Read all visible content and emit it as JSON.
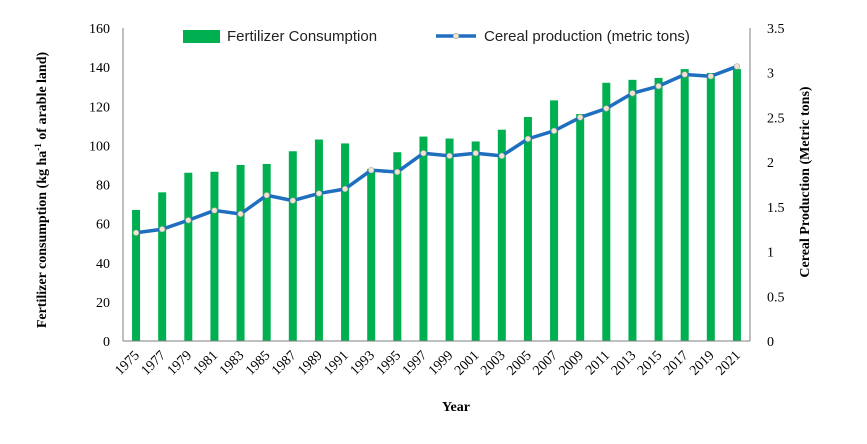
{
  "chart_data": {
    "type": "bar",
    "categories": [
      "1975",
      "1977",
      "1979",
      "1981",
      "1983",
      "1985",
      "1987",
      "1989",
      "1991",
      "1993",
      "1995",
      "1997",
      "1999",
      "2001",
      "2003",
      "2005",
      "2007",
      "2009",
      "2011",
      "2013",
      "2015",
      "2017",
      "2019",
      "2021"
    ],
    "series": [
      {
        "name": "Fertilizer Consumption",
        "type": "bar",
        "axis": "left",
        "color": "#00b050",
        "values": [
          67,
          76,
          86,
          86.5,
          90,
          90.5,
          97,
          103,
          101,
          88,
          96.5,
          104.5,
          103.5,
          102,
          108,
          114.5,
          123,
          116,
          132,
          133.5,
          134.5,
          139,
          137,
          139
        ]
      },
      {
        "name": "Cereal production (metric tons)",
        "type": "line",
        "axis": "right",
        "color": "#1f6fbf",
        "marker_color": "#f2e6c9",
        "values": [
          1.21,
          1.25,
          1.35,
          1.46,
          1.42,
          1.63,
          1.57,
          1.65,
          1.7,
          1.91,
          1.89,
          2.1,
          2.07,
          2.1,
          2.07,
          2.26,
          2.35,
          2.5,
          2.6,
          2.77,
          2.85,
          2.98,
          2.96,
          3.07
        ]
      }
    ],
    "xlabel": "Year",
    "ylabel_left_main": "Fertilizer consumption (kg ha",
    "ylabel_left_sup": "-1",
    "ylabel_left_tail": " of arable land)",
    "ylabel_right": "Cereal Production (Metric tons)",
    "ylim_left": [
      0,
      160
    ],
    "yticks_left": [
      "0",
      "20",
      "40",
      "60",
      "80",
      "100",
      "120",
      "140",
      "160"
    ],
    "ylim_right": [
      0,
      3.5
    ],
    "yticks_right": [
      "0",
      "0.5",
      "1",
      "1.5",
      "2",
      "2.5",
      "3",
      "3.5"
    ],
    "grid": false,
    "legend": "top"
  }
}
